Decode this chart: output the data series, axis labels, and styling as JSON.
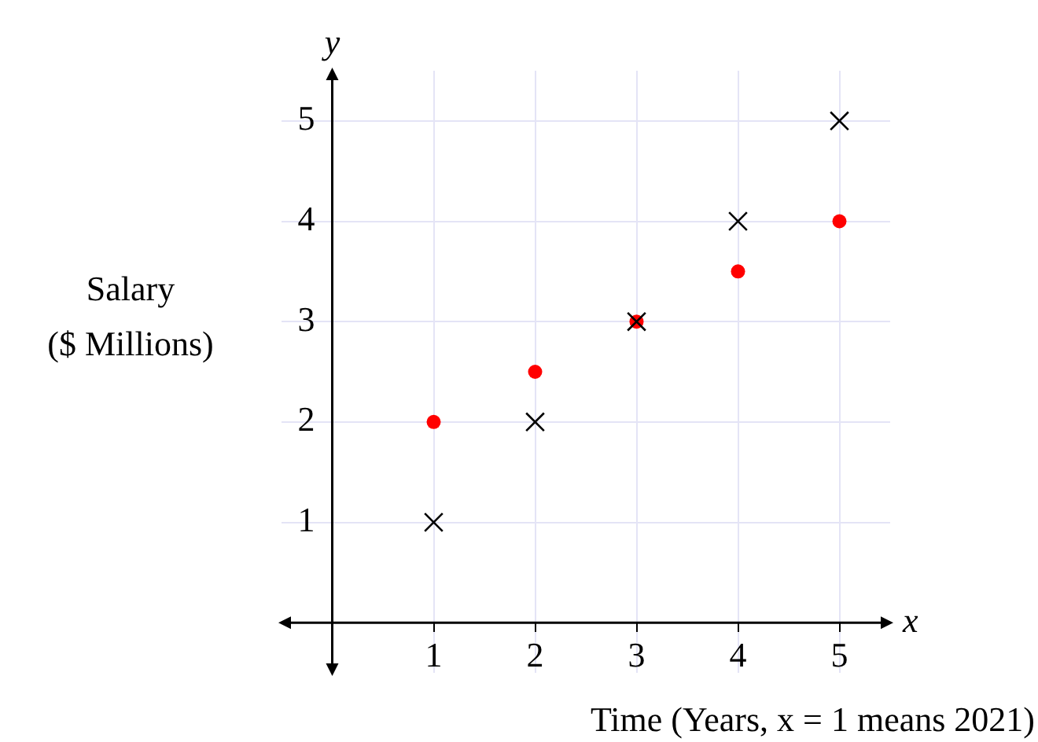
{
  "chart_data": {
    "type": "scatter",
    "xlabel": "Time (Years, x = 1 means 2021)",
    "ylabel": "Salary\n($ Millions)",
    "annotations": [
      "x",
      "y"
    ],
    "x": [
      1,
      2,
      3,
      4,
      5
    ],
    "series": [
      {
        "color": "#000000",
        "marker": "cross",
        "values": [
          1,
          2,
          3,
          4,
          5
        ]
      },
      {
        "color": "#ff0000",
        "marker": "circle",
        "values": [
          2,
          2.5,
          3,
          3.5,
          4
        ]
      }
    ],
    "xlim": [
      -0.5,
      5.5
    ],
    "ylim": [
      -0.5,
      5.5
    ],
    "xticks": [
      1,
      2,
      3,
      4,
      5
    ],
    "yticks": [
      1,
      2,
      3,
      4,
      5
    ],
    "grid": true,
    "legend": false
  }
}
